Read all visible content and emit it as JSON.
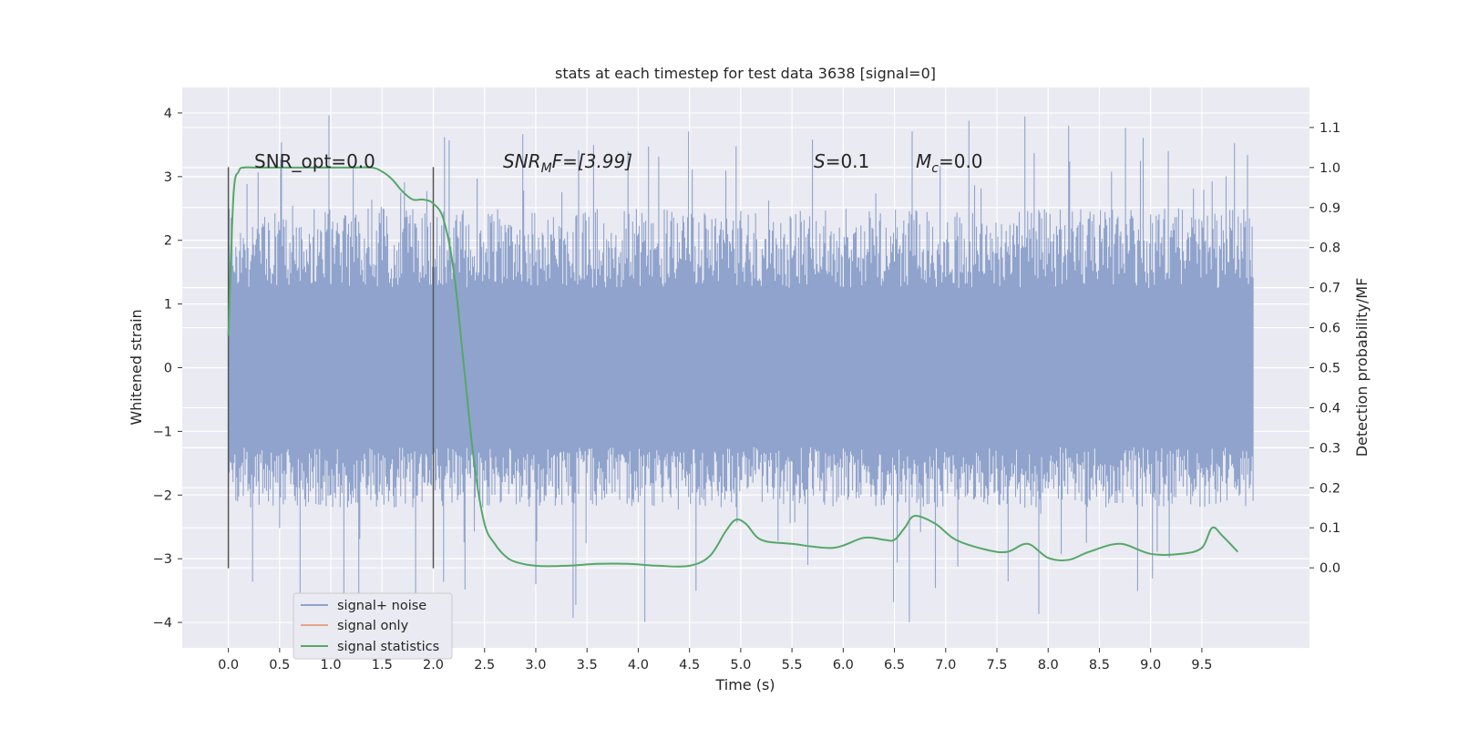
{
  "chart_data": {
    "type": "line",
    "title": "stats at each timestep for test data 3638 [signal=0]",
    "xlabel": "Time (s)",
    "ylabel_left": "Whitened strain",
    "ylabel_right": "Detection probability/MF",
    "xlim": [
      -0.45,
      10.55
    ],
    "ylim_left": [
      -4.4,
      4.4
    ],
    "ylim_right": [
      -0.2,
      1.2
    ],
    "x_ticks": [
      "0.0",
      "0.5",
      "1.0",
      "1.5",
      "2.0",
      "2.5",
      "3.0",
      "3.5",
      "4.0",
      "4.5",
      "5.0",
      "5.5",
      "6.0",
      "6.5",
      "7.0",
      "7.5",
      "8.0",
      "8.5",
      "9.0",
      "9.5"
    ],
    "y_ticks_left": [
      "−4",
      "−3",
      "−2",
      "−1",
      "0",
      "1",
      "2",
      "3",
      "4"
    ],
    "y_ticks_right": [
      "0.0",
      "0.1",
      "0.2",
      "0.3",
      "0.4",
      "0.5",
      "0.6",
      "0.7",
      "0.8",
      "0.9",
      "1.0",
      "1.1"
    ],
    "grid": true,
    "background": "#eaeaf2",
    "annotations": {
      "snr_opt": "SNR_opt=0.0",
      "snr_mf_main": "SNR",
      "snr_mf_sub": "M",
      "snr_mf_rest": "F=[3.99]",
      "s_main": "S",
      "s_rest": "=0.1",
      "mc_main": "M",
      "mc_sub": "c",
      "mc_rest": "=0.0"
    },
    "markers": [
      {
        "x": 0.0,
        "y_range": [
          -3.15,
          3.15
        ]
      },
      {
        "x": 2.0,
        "y_range": [
          -3.15,
          3.15
        ]
      }
    ],
    "noise_band": {
      "x_range": [
        0.0,
        10.0
      ],
      "core_range": [
        -1.25,
        1.25
      ],
      "typical_peak": [
        -2.2,
        2.5
      ],
      "max_spike": 4.05,
      "min_spike": -4.05
    },
    "series": [
      {
        "name": "signal+ noise",
        "color": "#8fa3cc",
        "axis": "left",
        "description_only": false
      },
      {
        "name": "signal only",
        "color": "#e6a58a",
        "axis": "left",
        "x": [],
        "y": []
      },
      {
        "name": "signal statistics",
        "color": "#55a868",
        "axis": "right",
        "x": [
          0.0,
          0.05,
          0.1,
          0.15,
          0.25,
          0.5,
          0.8,
          1.0,
          1.2,
          1.4,
          1.5,
          1.6,
          1.7,
          1.8,
          1.9,
          2.0,
          2.1,
          2.2,
          2.3,
          2.4,
          2.5,
          2.6,
          2.7,
          2.8,
          3.0,
          3.3,
          3.6,
          3.9,
          4.2,
          4.5,
          4.7,
          4.85,
          4.95,
          5.05,
          5.2,
          5.5,
          5.9,
          6.2,
          6.4,
          6.5,
          6.6,
          6.7,
          6.9,
          7.1,
          7.4,
          7.6,
          7.8,
          8.0,
          8.2,
          8.4,
          8.7,
          9.0,
          9.3,
          9.5,
          9.6,
          9.7,
          9.85
        ],
        "y": [
          0.58,
          0.93,
          0.99,
          1.0,
          1.0,
          1.0,
          1.0,
          1.0,
          1.0,
          1.0,
          0.99,
          0.97,
          0.94,
          0.92,
          0.92,
          0.91,
          0.87,
          0.74,
          0.5,
          0.26,
          0.11,
          0.06,
          0.03,
          0.015,
          0.005,
          0.005,
          0.01,
          0.01,
          0.005,
          0.005,
          0.03,
          0.09,
          0.12,
          0.11,
          0.07,
          0.06,
          0.05,
          0.075,
          0.07,
          0.07,
          0.1,
          0.13,
          0.11,
          0.07,
          0.045,
          0.04,
          0.06,
          0.025,
          0.02,
          0.04,
          0.06,
          0.035,
          0.035,
          0.05,
          0.1,
          0.08,
          0.04
        ]
      }
    ],
    "legend": {
      "position": "lower-left",
      "items": [
        "signal+ noise",
        "signal only",
        "signal statistics"
      ]
    }
  }
}
